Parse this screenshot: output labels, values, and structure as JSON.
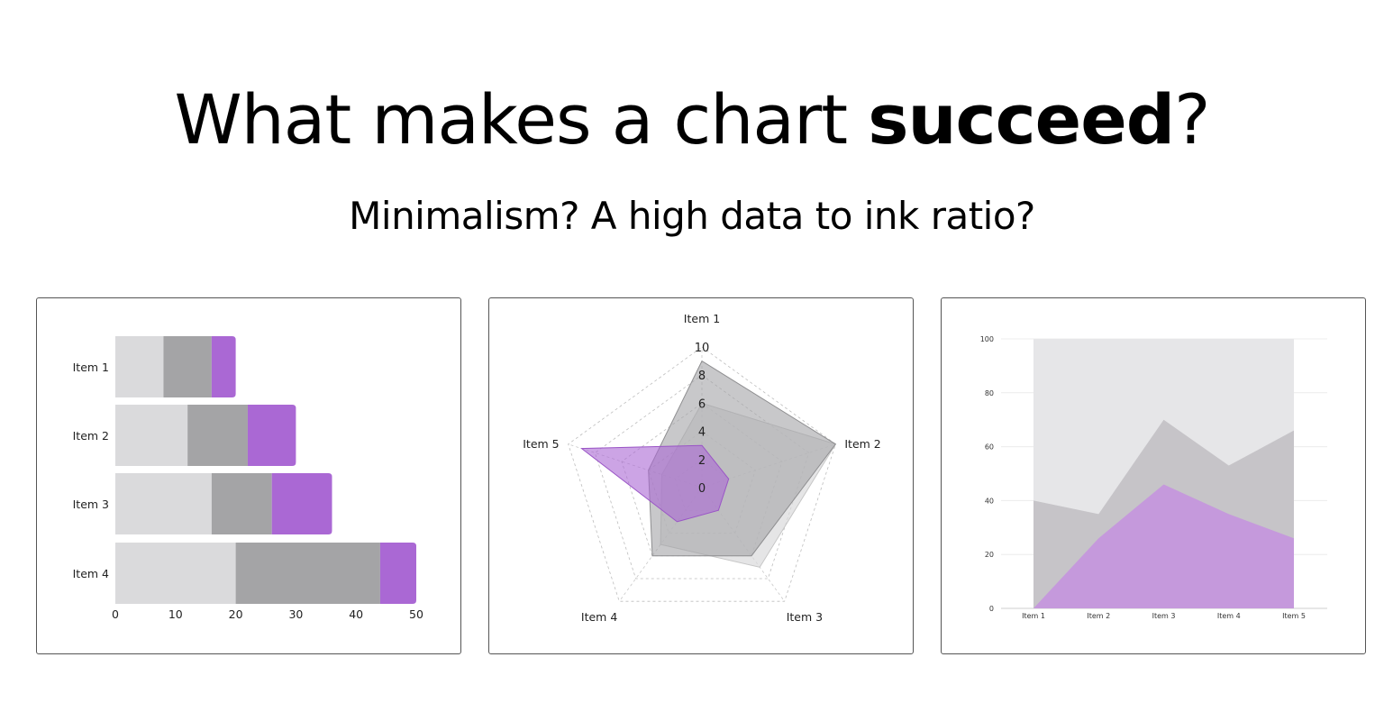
{
  "heading": {
    "title_regular": "What makes a chart ",
    "title_bold": "succeed",
    "title_end": "?",
    "subtitle": "Minimalism? A high data to ink ratio?"
  },
  "colors": {
    "light_gray": "#dadadc",
    "mid_gray": "#a4a4a6",
    "purple": "#aa68d4",
    "area_light": "#e6e6e8",
    "area_mid": "#c4c2c6",
    "area_purple": "#c597dd"
  },
  "chart_data": [
    {
      "type": "bar",
      "orientation": "horizontal",
      "stacked": true,
      "categories": [
        "Item 1",
        "Item 2",
        "Item 3",
        "Item 4"
      ],
      "series": [
        {
          "values": [
            8,
            12,
            16,
            20
          ],
          "color": "#dadadc"
        },
        {
          "values": [
            8,
            10,
            10,
            24
          ],
          "color": "#a4a4a6"
        },
        {
          "values": [
            4,
            8,
            10,
            6
          ],
          "color": "#aa68d4"
        }
      ],
      "xlim": [
        0,
        50
      ],
      "xticks": [
        "0",
        "10",
        "20",
        "30",
        "40",
        "50"
      ]
    },
    {
      "type": "radar",
      "categories": [
        "Item 1",
        "Item 2",
        "Item 3",
        "Item 4",
        "Item 5"
      ],
      "rlim": [
        0,
        10
      ],
      "rticks": [
        "0",
        "2",
        "4",
        "6",
        "8",
        "10"
      ],
      "series": [
        {
          "values": [
            6,
            10,
            7,
            5,
            3
          ],
          "color": "#dadadc"
        },
        {
          "values": [
            9,
            10,
            6,
            6,
            4
          ],
          "color": "#a4a4a6"
        },
        {
          "values": [
            3,
            2,
            2,
            3,
            9
          ],
          "color": "#aa68d4"
        }
      ]
    },
    {
      "type": "area",
      "categories": [
        "Item 1",
        "Item 2",
        "Item 3",
        "Item 4",
        "Item 5"
      ],
      "ylim": [
        0,
        100
      ],
      "yticks": [
        "0",
        "20",
        "40",
        "60",
        "80",
        "100"
      ],
      "series": [
        {
          "values": [
            100,
            100,
            100,
            100,
            100
          ],
          "color": "#e6e6e8"
        },
        {
          "values": [
            40,
            35,
            70,
            53,
            66
          ],
          "color": "#c4c2c6"
        },
        {
          "values": [
            0,
            26,
            46,
            35,
            26
          ],
          "color": "#c597dd"
        }
      ]
    }
  ]
}
